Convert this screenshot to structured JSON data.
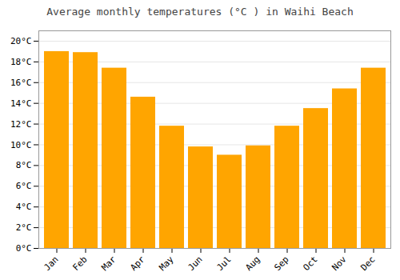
{
  "chart_data": {
    "type": "bar",
    "title": "Average monthly temperatures (°C ) in Waihi Beach",
    "categories": [
      "Jan",
      "Feb",
      "Mar",
      "Apr",
      "May",
      "Jun",
      "Jul",
      "Aug",
      "Sep",
      "Oct",
      "Nov",
      "Dec"
    ],
    "values": [
      19.0,
      18.9,
      17.4,
      14.6,
      11.8,
      9.8,
      9.0,
      9.9,
      11.8,
      13.5,
      15.4,
      17.4
    ],
    "color": "#FFA500",
    "ylim": [
      0,
      21
    ],
    "yticks": [
      {
        "value": 0,
        "label": "0°C"
      },
      {
        "value": 2,
        "label": "2°C"
      },
      {
        "value": 4,
        "label": "4°C"
      },
      {
        "value": 6,
        "label": "6°C"
      },
      {
        "value": 8,
        "label": "8°C"
      },
      {
        "value": 10,
        "label": "10°C"
      },
      {
        "value": 12,
        "label": "12°C"
      },
      {
        "value": 14,
        "label": "14°C"
      },
      {
        "value": 16,
        "label": "16°C"
      },
      {
        "value": 18,
        "label": "18°C"
      },
      {
        "value": 20,
        "label": "20°C"
      }
    ],
    "grid": true
  }
}
